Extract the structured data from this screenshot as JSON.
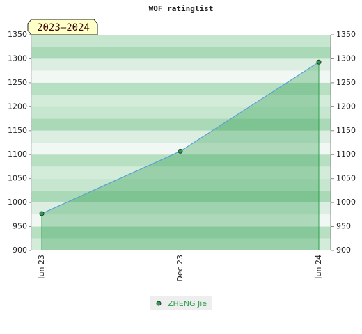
{
  "chart_data": {
    "type": "area",
    "title": "WOF ratinglist",
    "badge": "2023–2024",
    "categories": [
      "Jun 23",
      "Dec 23",
      "Jun 24"
    ],
    "series": [
      {
        "name": "ZHENG Jie",
        "color": "#2e9e4f",
        "values": [
          977,
          1107,
          1293
        ]
      }
    ],
    "ylim": [
      900,
      1350
    ],
    "yticks": [
      900,
      950,
      1000,
      1050,
      1100,
      1150,
      1200,
      1250,
      1300,
      1350
    ],
    "y2lim": [
      900,
      1350
    ],
    "y2ticks": [
      900,
      950,
      1000,
      1050,
      1100,
      1150,
      1200,
      1250,
      1300,
      1350
    ],
    "grid": true
  }
}
